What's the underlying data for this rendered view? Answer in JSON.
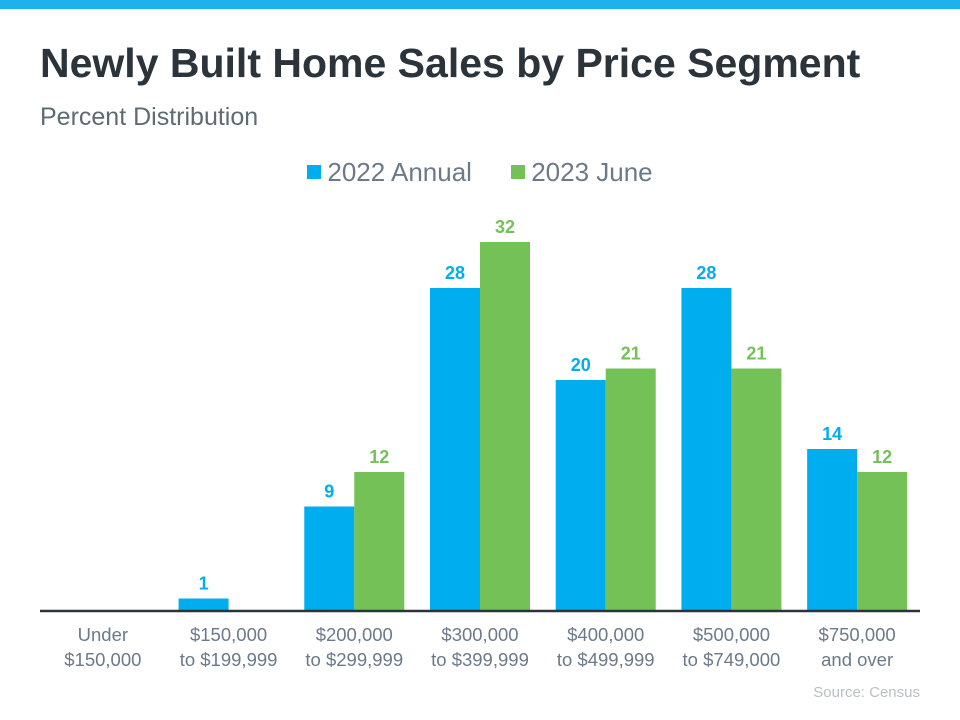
{
  "chart_data": {
    "type": "bar",
    "title": "Newly Built Home Sales by Price Segment",
    "subtitle": "Percent Distribution",
    "categories": [
      [
        "Under",
        "$150,000"
      ],
      [
        "$150,000",
        "to $199,999"
      ],
      [
        "$200,000",
        "to $299,999"
      ],
      [
        "$300,000",
        "to $399,999"
      ],
      [
        "$400,000",
        "to $499,999"
      ],
      [
        "$500,000",
        "to $749,000"
      ],
      [
        "$750,000",
        "and over"
      ]
    ],
    "series": [
      {
        "name": "2022 Annual",
        "color": "#00adee",
        "values": [
          null,
          1,
          9,
          28,
          20,
          28,
          14
        ]
      },
      {
        "name": "2023 June",
        "color": "#74c158",
        "values": [
          null,
          null,
          12,
          32,
          21,
          21,
          12
        ]
      }
    ],
    "ylim": [
      0,
      32
    ],
    "grid": false,
    "legend": "top-center",
    "source": "Source: Census"
  }
}
